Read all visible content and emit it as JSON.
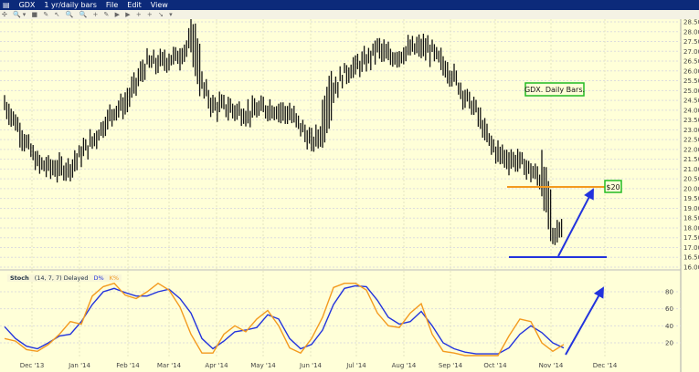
{
  "window": {
    "menu_icon": "menu-icon",
    "symbol": "GDX",
    "period": "1 yr/daily bars",
    "menus": [
      "File",
      "Edit",
      "View"
    ]
  },
  "toolbar": {
    "icons": "✣ 🔍▾ ■ ✎ ↖ 🔍 🔍 + ✎ ▶ ▶ + + ↘ ▾"
  },
  "colors": {
    "background": "#ffffd8",
    "bars": "#111111",
    "orange": "#f39a1e",
    "blue": "#2233dd",
    "box": "#22bb22"
  },
  "chart_data": [
    {
      "type": "bar",
      "subtype": "ohlc",
      "symbol": "GDX",
      "ylim": [
        16.0,
        28.5
      ],
      "y_ticks": [
        "28.50",
        "28.00",
        "27.50",
        "27.00",
        "26.50",
        "26.00",
        "25.50",
        "25.00",
        "24.50",
        "24.00",
        "23.50",
        "23.00",
        "22.50",
        "22.00",
        "21.50",
        "21.00",
        "20.50",
        "20.00",
        "19.50",
        "19.00",
        "18.50",
        "18.00",
        "17.50",
        "17.00",
        "16.50",
        "16.00"
      ],
      "x_ticks": [
        "Dec '13",
        "Jan '14",
        "Feb '14",
        "Mar '14",
        "Apr '14",
        "May '14",
        "Jun '14",
        "Jul '14",
        "Aug '14",
        "Sep '14",
        "Oct '14",
        "Nov '14",
        "Dec '14"
      ],
      "weekly_close_approx": [
        24.3,
        23.4,
        22.3,
        21.3,
        21.1,
        21.0,
        21.1,
        21.8,
        22.4,
        23.2,
        24.0,
        24.3,
        25.4,
        26.4,
        26.4,
        26.6,
        26.8,
        27.5,
        25.3,
        24.2,
        24.2,
        24.0,
        23.8,
        24.0,
        24.1,
        24.0,
        23.8,
        23.2,
        22.3,
        22.9,
        25.0,
        25.9,
        26.2,
        26.5,
        27.2,
        26.7,
        26.8,
        27.1,
        27.2,
        27.0,
        26.3,
        25.7,
        24.7,
        24.0,
        22.6,
        21.8,
        21.5,
        21.4,
        20.9,
        20.4,
        17.5,
        18.2
      ],
      "annotations": {
        "title_box": "GDX. Daily Bars.",
        "resistance_label": "$20",
        "resistance_level": 20.0,
        "support_level": 16.5
      }
    },
    {
      "type": "line",
      "indicator": "Stoch",
      "params": "(14, 7, 7) Delayed",
      "legend": [
        "D%",
        "K%"
      ],
      "ylim": [
        0,
        100
      ],
      "y_ticks": [
        "80",
        "60",
        "40",
        "20"
      ],
      "series": [
        {
          "name": "D%",
          "color": "#2233dd",
          "values": [
            39,
            25,
            16,
            13,
            20,
            28,
            30,
            45,
            65,
            80,
            84,
            79,
            75,
            75,
            80,
            83,
            72,
            55,
            25,
            13,
            22,
            33,
            35,
            38,
            53,
            48,
            25,
            13,
            18,
            35,
            65,
            84,
            87,
            86,
            70,
            50,
            42,
            45,
            57,
            40,
            20,
            13,
            9,
            7,
            7,
            7,
            14,
            30,
            40,
            32,
            20,
            14
          ]
        },
        {
          "name": "K%",
          "color": "#f39a1e",
          "values": [
            25,
            22,
            12,
            10,
            18,
            30,
            45,
            42,
            75,
            86,
            90,
            76,
            72,
            80,
            90,
            82,
            62,
            30,
            8,
            8,
            30,
            40,
            33,
            48,
            58,
            40,
            14,
            8,
            25,
            50,
            85,
            90,
            90,
            82,
            55,
            40,
            38,
            55,
            66,
            30,
            10,
            8,
            5,
            5,
            5,
            5,
            28,
            48,
            45,
            20,
            10,
            18
          ]
        }
      ],
      "annotation": "upward-arrow"
    }
  ]
}
